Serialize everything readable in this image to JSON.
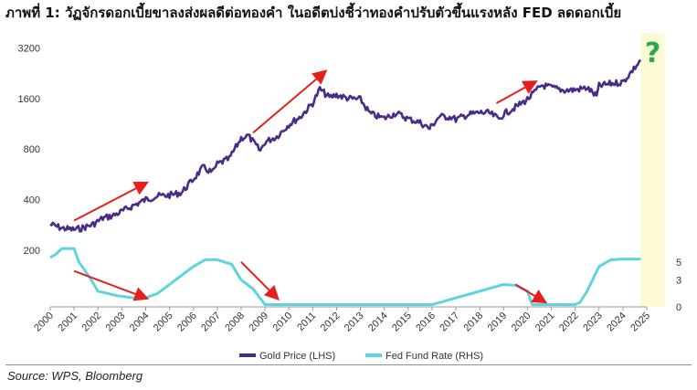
{
  "title": "ภาพที่ 1: วัฏจักรดอกเบี้ยขาลงส่งผลดีต่อทองคำ ในอดีตบ่งชี้ว่าทองคำปรับตัวขึ้นแรงหลัง FED ลดดอกเบี้ย",
  "source": "Source: WPS, Bloomberg",
  "question_mark": "?",
  "colors": {
    "gold": "#472d87",
    "fed": "#5fd3de",
    "arrow": "#e3201b",
    "highlight": "#fdfbd3",
    "axis_text": "#333333"
  },
  "chart_data": {
    "type": "line",
    "x_ticks": [
      "2000",
      "2001",
      "2002",
      "2003",
      "2004",
      "2005",
      "2006",
      "2007",
      "2008",
      "2009",
      "2010",
      "2011",
      "2012",
      "2013",
      "2014",
      "2015",
      "2016",
      "2017",
      "2018",
      "2019",
      "2020",
      "2021",
      "2022",
      "2023",
      "2024",
      "2025"
    ],
    "xlim": [
      2000,
      2025
    ],
    "y_left": {
      "scale": "log",
      "ticks": [
        "3200",
        "1600",
        "800",
        "400",
        "200"
      ],
      "ylim": [
        190,
        3300
      ]
    },
    "y_right": {
      "ticks": [
        "5",
        "3",
        "0"
      ],
      "ylim": [
        0,
        12
      ]
    },
    "legend": {
      "position": "bottom",
      "entries": [
        "Gold Price (LHS)",
        "Fed Fund Rate (RHS)"
      ]
    },
    "highlight_region": [
      2024.75,
      2025.75
    ],
    "series": [
      {
        "name": "Gold Price (LHS)",
        "axis": "left",
        "x": [
          2000,
          2000.5,
          2001,
          2001.3,
          2001.8,
          2002.2,
          2002.6,
          2003,
          2003.5,
          2004,
          2004.5,
          2005,
          2005.5,
          2006,
          2006.4,
          2006.8,
          2007,
          2007.5,
          2008,
          2008.3,
          2008.8,
          2009,
          2009.5,
          2010,
          2010.5,
          2011,
          2011.3,
          2011.7,
          2012,
          2012.5,
          2013,
          2013.4,
          2013.8,
          2014,
          2014.5,
          2015,
          2015.5,
          2015.9,
          2016.3,
          2016.8,
          2017,
          2017.5,
          2018,
          2018.4,
          2018.8,
          2019,
          2019.5,
          2020,
          2020.6,
          2021,
          2021.5,
          2022,
          2022.5,
          2022.9,
          2023,
          2023.5,
          2024,
          2024.4,
          2024.75
        ],
        "values": [
          285,
          270,
          265,
          270,
          285,
          310,
          320,
          340,
          370,
          400,
          420,
          425,
          440,
          530,
          620,
          580,
          650,
          700,
          930,
          960,
          780,
          880,
          950,
          1120,
          1250,
          1500,
          1820,
          1620,
          1680,
          1600,
          1580,
          1300,
          1240,
          1220,
          1310,
          1210,
          1150,
          1060,
          1250,
          1240,
          1200,
          1280,
          1320,
          1310,
          1210,
          1290,
          1420,
          1580,
          1920,
          1860,
          1790,
          1800,
          1850,
          1650,
          1900,
          1960,
          2000,
          2350,
          2700
        ]
      },
      {
        "name": "Fed Fund Rate (RHS)",
        "axis": "right",
        "x": [
          2000,
          2000.2,
          2000.5,
          2001,
          2001.2,
          2001.6,
          2002,
          2002.8,
          2003.5,
          2004,
          2004.5,
          2005,
          2005.5,
          2006,
          2006.5,
          2007,
          2007.6,
          2008,
          2008.5,
          2009,
          2016,
          2017,
          2018,
          2019,
          2019.5,
          2020,
          2020.2,
          2021,
          2022,
          2022.2,
          2022.5,
          2023,
          2023.5,
          2024,
          2024.75
        ],
        "values": [
          5.5,
          5.8,
          6.5,
          6.5,
          5.0,
          3.5,
          1.75,
          1.25,
          1.0,
          1.0,
          1.5,
          2.5,
          3.5,
          4.5,
          5.25,
          5.25,
          4.75,
          3.0,
          2.0,
          0.25,
          0.25,
          1.0,
          1.75,
          2.5,
          2.4,
          1.75,
          0.25,
          0.25,
          0.25,
          0.5,
          1.75,
          4.5,
          5.25,
          5.33,
          5.33
        ]
      }
    ],
    "annotations": [
      {
        "type": "arrow",
        "from": [
          2001,
          300,
          "left"
        ],
        "to": [
          2004,
          500,
          "left"
        ]
      },
      {
        "type": "arrow",
        "from": [
          2008.5,
          1000,
          "left"
        ],
        "to": [
          2011.5,
          2300,
          "left"
        ]
      },
      {
        "type": "arrow",
        "from": [
          2018.7,
          1500,
          "left"
        ],
        "to": [
          2020.3,
          2000,
          "left"
        ]
      },
      {
        "type": "arrow",
        "from": [
          2001,
          4.0,
          "right"
        ],
        "to": [
          2004,
          1.0,
          "right"
        ]
      },
      {
        "type": "arrow",
        "from": [
          2008,
          5.0,
          "right"
        ],
        "to": [
          2009.5,
          1.0,
          "right"
        ]
      },
      {
        "type": "arrow",
        "from": [
          2019.5,
          2.5,
          "right"
        ],
        "to": [
          2020.7,
          0.6,
          "right"
        ]
      }
    ]
  }
}
